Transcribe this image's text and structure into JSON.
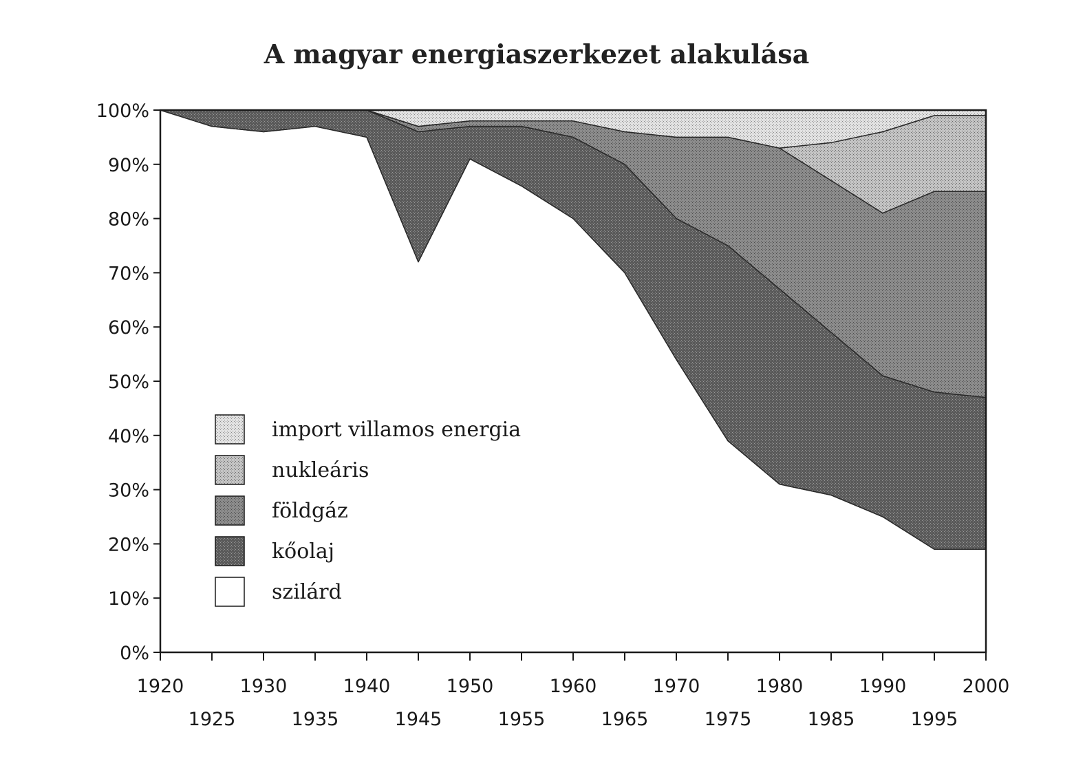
{
  "chart_data": {
    "type": "area",
    "stacked": true,
    "percent": true,
    "title": "A magyar energiaszerkezet alakulása",
    "xlabel": "",
    "ylabel": "",
    "x": [
      1920,
      1925,
      1930,
      1935,
      1940,
      1945,
      1950,
      1955,
      1960,
      1965,
      1970,
      1975,
      1980,
      1985,
      1990,
      1995,
      2000
    ],
    "xticks_upper": [
      "1920",
      "1930",
      "1940",
      "1950",
      "1960",
      "1970",
      "1980",
      "1990",
      "2000"
    ],
    "xticks_lower": [
      "1925",
      "1935",
      "1945",
      "1955",
      "1965",
      "1975",
      "1985",
      "1995"
    ],
    "yticks": [
      "0%",
      "10%",
      "20%",
      "30%",
      "40%",
      "50%",
      "60%",
      "70%",
      "80%",
      "90%",
      "100%"
    ],
    "ylim": [
      0,
      100
    ],
    "xlim": [
      1920,
      2000
    ],
    "legend_position": "lower-left",
    "series": [
      {
        "name": "szilárd",
        "fill": "#ffffff",
        "pattern": "solid",
        "values": [
          100,
          97,
          96,
          97,
          95,
          72,
          91,
          86,
          80,
          70,
          54,
          39,
          31,
          29,
          25,
          19,
          19
        ]
      },
      {
        "name": "kőolaj",
        "fill": "#555555",
        "pattern": "dense",
        "values": [
          0,
          3,
          4,
          3,
          5,
          24,
          6,
          11,
          15,
          20,
          26,
          36,
          36,
          30,
          26,
          29,
          28
        ]
      },
      {
        "name": "földgáz",
        "fill": "#888888",
        "pattern": "medium",
        "values": [
          0,
          0,
          0,
          0,
          0,
          1,
          1,
          1,
          3,
          6,
          15,
          20,
          26,
          28,
          30,
          37,
          38
        ]
      },
      {
        "name": "nukleáris",
        "fill": "#bdbdbd",
        "pattern": "light",
        "values": [
          0,
          0,
          0,
          0,
          0,
          0,
          0,
          0,
          0,
          0,
          0,
          0,
          0,
          7,
          15,
          14,
          14
        ]
      },
      {
        "name": "import villamos energia",
        "fill": "#dcdcdc",
        "pattern": "lighter",
        "values": [
          0,
          0,
          0,
          0,
          0,
          3,
          2,
          2,
          2,
          4,
          5,
          5,
          7,
          6,
          4,
          1,
          1
        ]
      }
    ],
    "legend_order": [
      "import villamos energia",
      "nukleáris",
      "földgáz",
      "kőolaj",
      "szilárd"
    ]
  }
}
